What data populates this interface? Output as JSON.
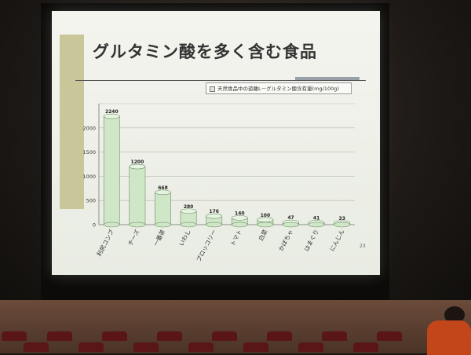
{
  "slide": {
    "title": "グルタミン酸を多く含む食品",
    "page_number": "23"
  },
  "chart_data": {
    "type": "bar",
    "title": "グルタミン酸を多く含む食品",
    "legend": "天然食品中の遊離L－グルタミン酸含有量(mg/100g)",
    "legend_position": "top-right",
    "categories": [
      "利尻コンブ",
      "チーズ",
      "一番茶",
      "いわし",
      "ブロッコリー",
      "トマト",
      "白菜",
      "かぼちゃ",
      "はまぐり",
      "にんじん"
    ],
    "values": [
      2240,
      1200,
      668,
      280,
      176,
      140,
      100,
      47,
      41,
      33
    ],
    "value_labels": [
      "2240",
      "1200",
      "668",
      "280",
      "176",
      "140",
      "100",
      "47",
      "41",
      "33"
    ],
    "yticks": [
      0,
      500,
      1000,
      1500,
      2000
    ],
    "ylim": [
      0,
      2500
    ],
    "grid": true,
    "bar_color": "#cfe6c7"
  }
}
